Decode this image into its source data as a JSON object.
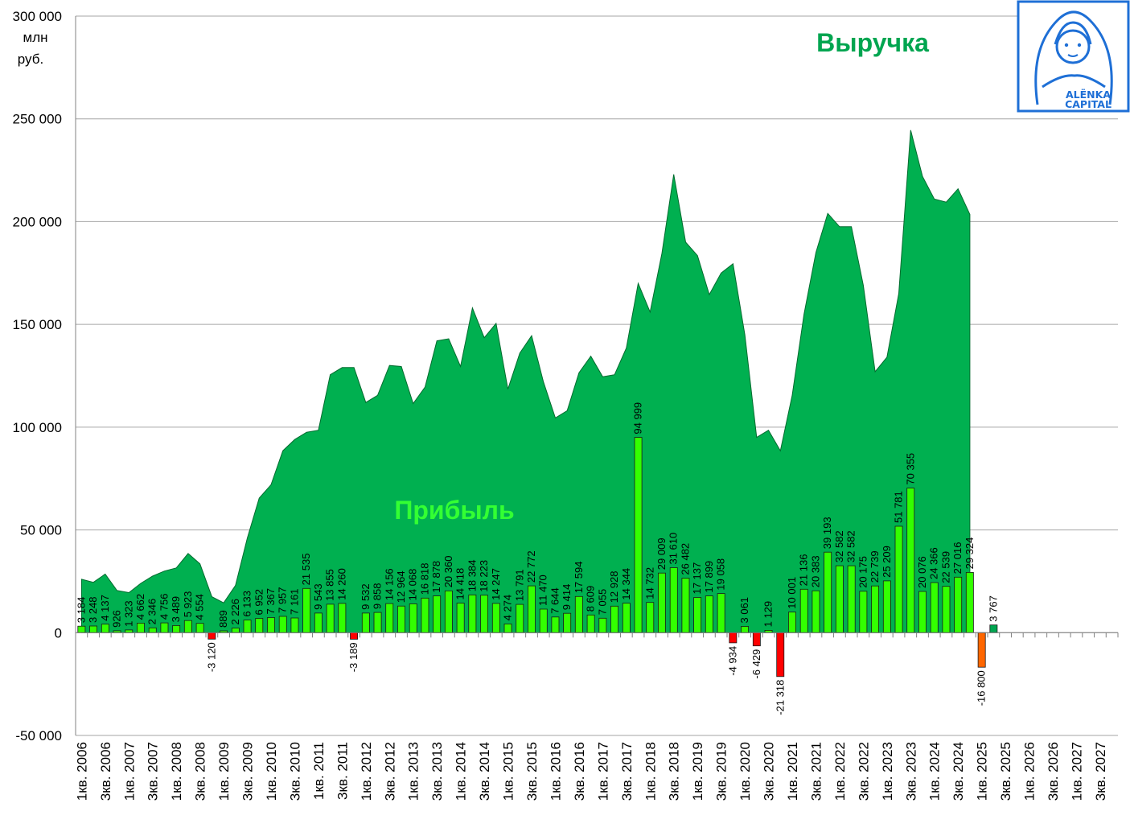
{
  "chart_data": {
    "type": "bar",
    "title_revenue": "Выручка",
    "title_profit": "Прибыль",
    "unit_label": [
      "млн",
      "руб."
    ],
    "ylim": [
      -50000,
      300000
    ],
    "yticks": [
      -50000,
      0,
      50000,
      100000,
      150000,
      200000,
      250000,
      300000
    ],
    "ytick_labels": [
      "-50 000",
      "0",
      "50 000",
      "100 000",
      "150 000",
      "200 000",
      "250 000",
      "300 000"
    ],
    "grid": true,
    "x_axis_labels": [
      "1кв. 2006",
      "3кв. 2006",
      "1кв. 2007",
      "3кв. 2007",
      "1кв. 2008",
      "3кв. 2008",
      "1кв. 2009",
      "3кв. 2009",
      "1кв. 2010",
      "3кв. 2010",
      "1кв. 2011",
      "3кв. 2011",
      "1кв. 2012",
      "3кв. 2012",
      "1кв. 2013",
      "3кв. 2013",
      "1кв. 2014",
      "3кв. 2014",
      "1кв. 2015",
      "3кв. 2015",
      "1кв. 2016",
      "3кв. 2016",
      "1кв. 2017",
      "3кв. 2017",
      "1кв. 2018",
      "3кв. 2018",
      "1кв. 2019",
      "3кв. 2019",
      "1кв. 2020",
      "3кв. 2020",
      "1кв. 2021",
      "3кв. 2021",
      "1кв. 2022",
      "3кв. 2022",
      "1кв. 2023",
      "3кв. 2023",
      "1кв. 2024",
      "3кв. 2024",
      "1кв. 2025",
      "3кв. 2025",
      "1кв. 2026",
      "3кв. 2026",
      "1кв. 2027",
      "3кв. 2027"
    ],
    "series": [
      {
        "name": "Выручка",
        "kind": "area",
        "color": "#00b050",
        "values": [
          26000,
          24500,
          28500,
          20500,
          19500,
          24000,
          27500,
          30000,
          31500,
          38500,
          33500,
          17500,
          14500,
          23000,
          46000,
          65500,
          72000,
          88500,
          94000,
          97500,
          98500,
          125500,
          129000,
          129000,
          112000,
          115500,
          130000,
          129500,
          111500,
          119500,
          142000,
          143000,
          129500,
          158000,
          143500,
          150500,
          118500,
          136000,
          144500,
          122000,
          104500,
          108000,
          126500,
          134500,
          124500,
          125500,
          138500,
          170000,
          156000,
          184500,
          223000,
          190000,
          183500,
          164500,
          175000,
          179500,
          145000,
          95000,
          98500,
          88500,
          115500,
          155000,
          185000,
          204000,
          197500,
          197500,
          169000,
          127000,
          134000,
          165000,
          244500,
          222000,
          211000,
          209500,
          216000,
          203500
        ]
      },
      {
        "name": "Прибыль",
        "kind": "bar",
        "color": "#33ff00",
        "negative_color": "#ff0000",
        "values": [
          3184,
          3248,
          4137,
          926,
          1323,
          4662,
          2346,
          4756,
          3489,
          5923,
          4554,
          -3120,
          889,
          2226,
          6133,
          6952,
          7367,
          7957,
          7161,
          21535,
          9543,
          13855,
          14260,
          -3189,
          9532,
          9858,
          14156,
          12964,
          14068,
          16818,
          17878,
          20360,
          14418,
          18384,
          18223,
          14247,
          4274,
          13791,
          22772,
          11470,
          7644,
          9414,
          17594,
          8609,
          7055,
          12928,
          14344,
          94999,
          14732,
          29009,
          31610,
          26482,
          17137,
          17899,
          19058,
          -4934,
          3061,
          -6429,
          1129,
          -21318,
          10001,
          21136,
          20383,
          39193,
          32582,
          32582,
          20175,
          22739,
          25209,
          51781,
          70355,
          20076,
          24366,
          22539,
          27016,
          29324,
          -16800,
          3767
        ],
        "labels": [
          "3 184",
          "3 248",
          "4 137",
          "926",
          "1 323",
          "4 662",
          "2 346",
          "4 756",
          "3 489",
          "5 923",
          "4 554",
          "-3 120",
          "889",
          "2 226",
          "6 133",
          "6 952",
          "7 367",
          "7 957",
          "7 161",
          "21 535",
          "9 543",
          "13 855",
          "14 260",
          "-3 189",
          "9 532",
          "9 858",
          "14 156",
          "12 964",
          "14 068",
          "16 818",
          "17 878",
          "20 360",
          "14 418",
          "18 384",
          "18 223",
          "14 247",
          "4 274",
          "13 791",
          "22 772",
          "11 470",
          "7 644",
          "9 414",
          "17 594",
          "8 609",
          "7 055",
          "12 928",
          "14 344",
          "94 999",
          "14 732",
          "29 009",
          "31 610",
          "26 482",
          "17 137",
          "17 899",
          "19 058",
          "-4 934",
          "3 061",
          "-6 429",
          "1 129",
          "-21 318",
          "10 001",
          "21 136",
          "20 383",
          "39 193",
          "32 582",
          "32 582",
          "20 175",
          "22 739",
          "25 209",
          "51 781",
          "70 355",
          "20 076",
          "24 366",
          "22 539",
          "27 016",
          "29 324",
          "-16 800",
          "3 767"
        ],
        "special_colors": {
          "76": "#ff6600",
          "77": "#00a550"
        }
      }
    ],
    "num_slots": 88
  },
  "logo": {
    "line1": "ALЁNKA",
    "line2": "CAPITAL",
    "color": "#1e6fd6"
  }
}
